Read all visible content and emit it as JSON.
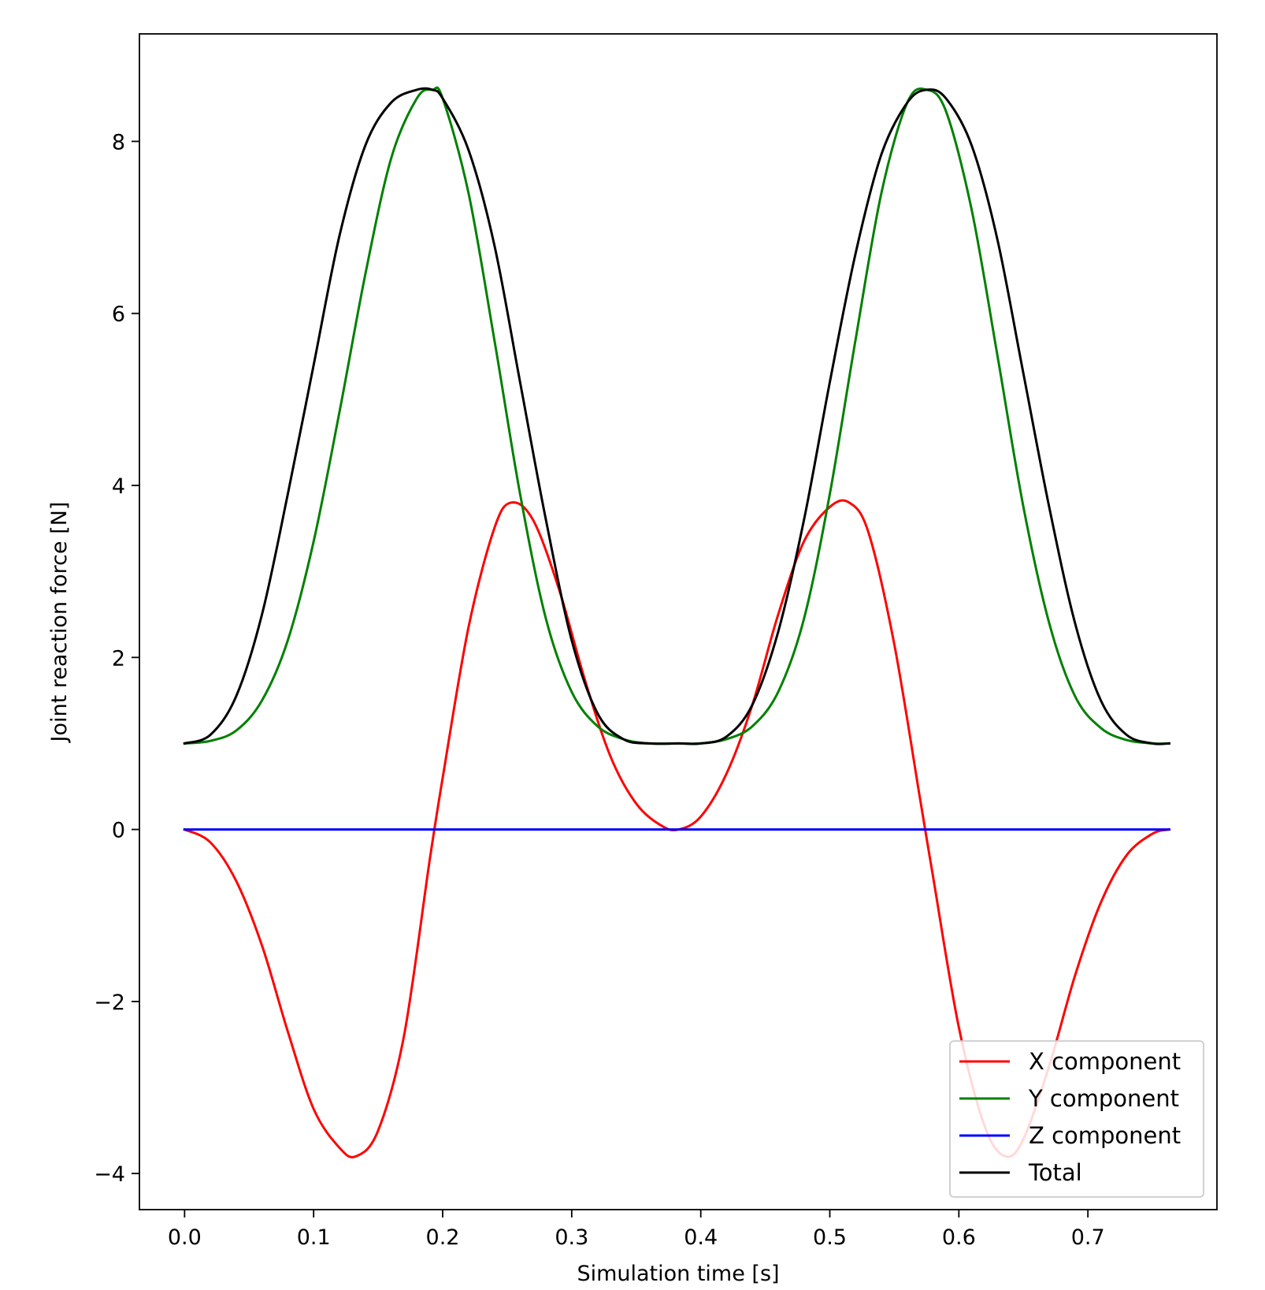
{
  "chart_data": {
    "type": "line",
    "title": "",
    "xlabel": "Simulation time [s]",
    "ylabel": "Joint reaction force [N]",
    "xlim": [
      -0.035,
      0.8
    ],
    "ylim": [
      -4.42,
      9.25
    ],
    "x_ticks": [
      0.0,
      0.1,
      0.2,
      0.3,
      0.4,
      0.5,
      0.6,
      0.7
    ],
    "x_tick_labels": [
      "0.0",
      "0.1",
      "0.2",
      "0.3",
      "0.4",
      "0.5",
      "0.6",
      "0.7"
    ],
    "y_ticks": [
      -4,
      -2,
      0,
      2,
      4,
      6,
      8
    ],
    "y_tick_labels": [
      "−4",
      "−2",
      "0",
      "2",
      "4",
      "6",
      "8"
    ],
    "grid": false,
    "legend_position": "bottom-right",
    "series": [
      {
        "name": "X component",
        "color": "#ff0000",
        "x": [
          0.0,
          0.02,
          0.04,
          0.06,
          0.08,
          0.1,
          0.12,
          0.133,
          0.15,
          0.17,
          0.19,
          0.2,
          0.22,
          0.24,
          0.253,
          0.27,
          0.29,
          0.31,
          0.33,
          0.35,
          0.37,
          0.383,
          0.4,
          0.42,
          0.44,
          0.46,
          0.48,
          0.5,
          0.515,
          0.53,
          0.55,
          0.57,
          0.58,
          0.6,
          0.62,
          0.636,
          0.65,
          0.67,
          0.69,
          0.71,
          0.73,
          0.75,
          0.763
        ],
        "y": [
          0.0,
          -0.15,
          -0.6,
          -1.35,
          -2.35,
          -3.25,
          -3.7,
          -3.8,
          -3.5,
          -2.4,
          -0.35,
          0.6,
          2.35,
          3.5,
          3.8,
          3.6,
          2.8,
          1.75,
          0.85,
          0.3,
          0.04,
          0.0,
          0.15,
          0.65,
          1.45,
          2.5,
          3.35,
          3.75,
          3.8,
          3.45,
          2.15,
          0.35,
          -0.55,
          -2.3,
          -3.45,
          -3.8,
          -3.6,
          -2.75,
          -1.7,
          -0.85,
          -0.3,
          -0.05,
          0.0
        ]
      },
      {
        "name": "Y component",
        "color": "#008000",
        "x": [
          0.0,
          0.02,
          0.04,
          0.06,
          0.08,
          0.1,
          0.12,
          0.14,
          0.16,
          0.18,
          0.192,
          0.2,
          0.22,
          0.24,
          0.26,
          0.28,
          0.3,
          0.32,
          0.34,
          0.36,
          0.383,
          0.4,
          0.42,
          0.44,
          0.46,
          0.48,
          0.5,
          0.52,
          0.54,
          0.56,
          0.575,
          0.59,
          0.61,
          0.63,
          0.65,
          0.67,
          0.69,
          0.71,
          0.73,
          0.75,
          0.763
        ],
        "y": [
          1.0,
          1.03,
          1.15,
          1.5,
          2.2,
          3.35,
          4.85,
          6.45,
          7.8,
          8.5,
          8.6,
          8.5,
          7.4,
          5.7,
          3.9,
          2.45,
          1.6,
          1.2,
          1.05,
          1.0,
          1.0,
          1.0,
          1.05,
          1.2,
          1.6,
          2.45,
          3.9,
          5.7,
          7.4,
          8.45,
          8.6,
          8.35,
          7.2,
          5.5,
          3.75,
          2.4,
          1.55,
          1.18,
          1.04,
          1.0,
          1.0
        ]
      },
      {
        "name": "Z component",
        "color": "#0000ff",
        "x": [
          0.0,
          0.763
        ],
        "y": [
          0.0,
          0.0
        ]
      },
      {
        "name": "Total",
        "color": "#000000",
        "x": [
          0.0,
          0.02,
          0.04,
          0.06,
          0.08,
          0.1,
          0.12,
          0.14,
          0.16,
          0.18,
          0.192,
          0.2,
          0.22,
          0.24,
          0.26,
          0.28,
          0.3,
          0.32,
          0.34,
          0.36,
          0.383,
          0.4,
          0.42,
          0.44,
          0.46,
          0.48,
          0.5,
          0.52,
          0.54,
          0.56,
          0.575,
          0.59,
          0.61,
          0.63,
          0.65,
          0.67,
          0.69,
          0.71,
          0.73,
          0.75,
          0.763
        ],
        "y": [
          1.0,
          1.1,
          1.55,
          2.5,
          3.9,
          5.4,
          6.9,
          7.95,
          8.45,
          8.6,
          8.6,
          8.5,
          7.9,
          6.8,
          5.2,
          3.6,
          2.2,
          1.35,
          1.05,
          1.0,
          1.0,
          1.0,
          1.08,
          1.45,
          2.3,
          3.6,
          5.2,
          6.7,
          7.85,
          8.45,
          8.6,
          8.5,
          7.95,
          6.85,
          5.3,
          3.75,
          2.4,
          1.5,
          1.1,
          1.0,
          1.0
        ]
      }
    ]
  }
}
